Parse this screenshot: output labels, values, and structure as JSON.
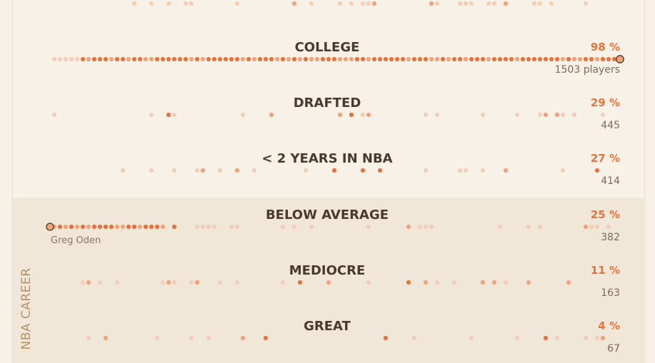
{
  "side_label": "NBA CAREER",
  "colors": {
    "background": "#f7f1e8",
    "career_band": "#f1e7d9",
    "dot_strong": "#e8733a",
    "dot_medium": "#f0a278",
    "dot_light": "#f5cdb6",
    "title": "#4a3a2c",
    "percent": "#e8733a",
    "count": "#7b6b5b"
  },
  "chart_data": {
    "type": "dot-strip",
    "stages": [
      {
        "label": "COLLEGE",
        "percent": "98 %",
        "count": "1503 players",
        "density": 1.0,
        "seed": 11,
        "highlight_end": "right"
      },
      {
        "label": "DRAFTED",
        "percent": "29 %",
        "count": "445",
        "density": 0.35,
        "seed": 23
      },
      {
        "label": "< 2 YEARS IN NBA",
        "percent": "27 %",
        "count": "414",
        "density": 0.32,
        "seed": 37
      },
      {
        "label": "BELOW AVERAGE",
        "percent": "25 %",
        "count": "382",
        "density": 0.6,
        "seed": 41,
        "highlight_end": "left",
        "player": "Greg Oden"
      },
      {
        "label": "MEDIOCRE",
        "percent": "11 %",
        "count": "163",
        "density": 0.45,
        "seed": 53
      },
      {
        "label": "GREAT",
        "percent": "4 %",
        "count": "67",
        "density": 0.25,
        "seed": 67
      }
    ]
  }
}
